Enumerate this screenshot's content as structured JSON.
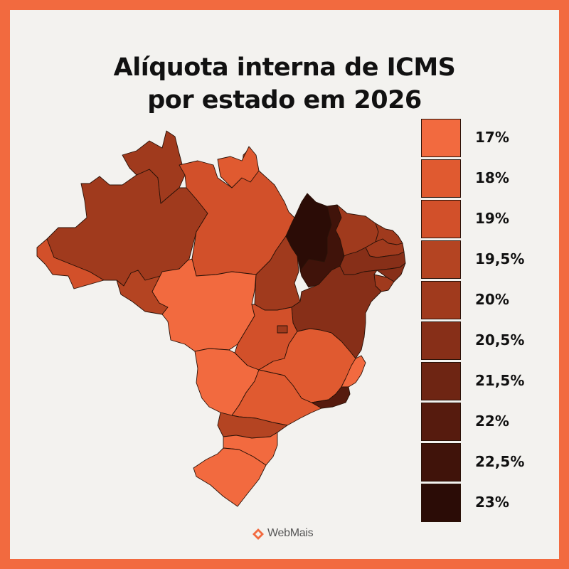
{
  "title": {
    "line1": "Alíquota interna de ICMS",
    "line2": "por estado em 2026"
  },
  "legend": [
    {
      "label": "17%",
      "color": "#f26a3f"
    },
    {
      "label": "18%",
      "color": "#e05a30"
    },
    {
      "label": "19%",
      "color": "#d2502a"
    },
    {
      "label": "19,5%",
      "color": "#b44422"
    },
    {
      "label": "20%",
      "color": "#a03a1d"
    },
    {
      "label": "20,5%",
      "color": "#872f18"
    },
    {
      "label": "21,5%",
      "color": "#6e2513"
    },
    {
      "label": "22%",
      "color": "#561b0e"
    },
    {
      "label": "22,5%",
      "color": "#40130a"
    },
    {
      "label": "23%",
      "color": "#2b0c06"
    }
  ],
  "map_regions": [
    {
      "id": "AM",
      "rate": "20%"
    },
    {
      "id": "RR",
      "rate": "20%"
    },
    {
      "id": "AC",
      "rate": "19%"
    },
    {
      "id": "RO",
      "rate": "19,5%"
    },
    {
      "id": "PA",
      "rate": "19%"
    },
    {
      "id": "AP",
      "rate": "18%"
    },
    {
      "id": "MT",
      "rate": "17%"
    },
    {
      "id": "TO",
      "rate": "20%"
    },
    {
      "id": "MA",
      "rate": "23%"
    },
    {
      "id": "PI",
      "rate": "22,5%"
    },
    {
      "id": "CE",
      "rate": "20%"
    },
    {
      "id": "RN",
      "rate": "20%"
    },
    {
      "id": "PB",
      "rate": "20%"
    },
    {
      "id": "PE",
      "rate": "20,5%"
    },
    {
      "id": "AL",
      "rate": "20,5%"
    },
    {
      "id": "SE",
      "rate": "20%"
    },
    {
      "id": "BA",
      "rate": "20,5%"
    },
    {
      "id": "GO",
      "rate": "19%"
    },
    {
      "id": "DF",
      "rate": "20%"
    },
    {
      "id": "MG",
      "rate": "18%"
    },
    {
      "id": "ES",
      "rate": "17%"
    },
    {
      "id": "RJ",
      "rate": "22%"
    },
    {
      "id": "MS",
      "rate": "17%"
    },
    {
      "id": "SP",
      "rate": "18%"
    },
    {
      "id": "PR",
      "rate": "19,5%"
    },
    {
      "id": "SC",
      "rate": "17%"
    },
    {
      "id": "RS",
      "rate": "17%"
    }
  ],
  "brand": {
    "name": "WebMais",
    "icon": "webmais-logo-icon"
  }
}
